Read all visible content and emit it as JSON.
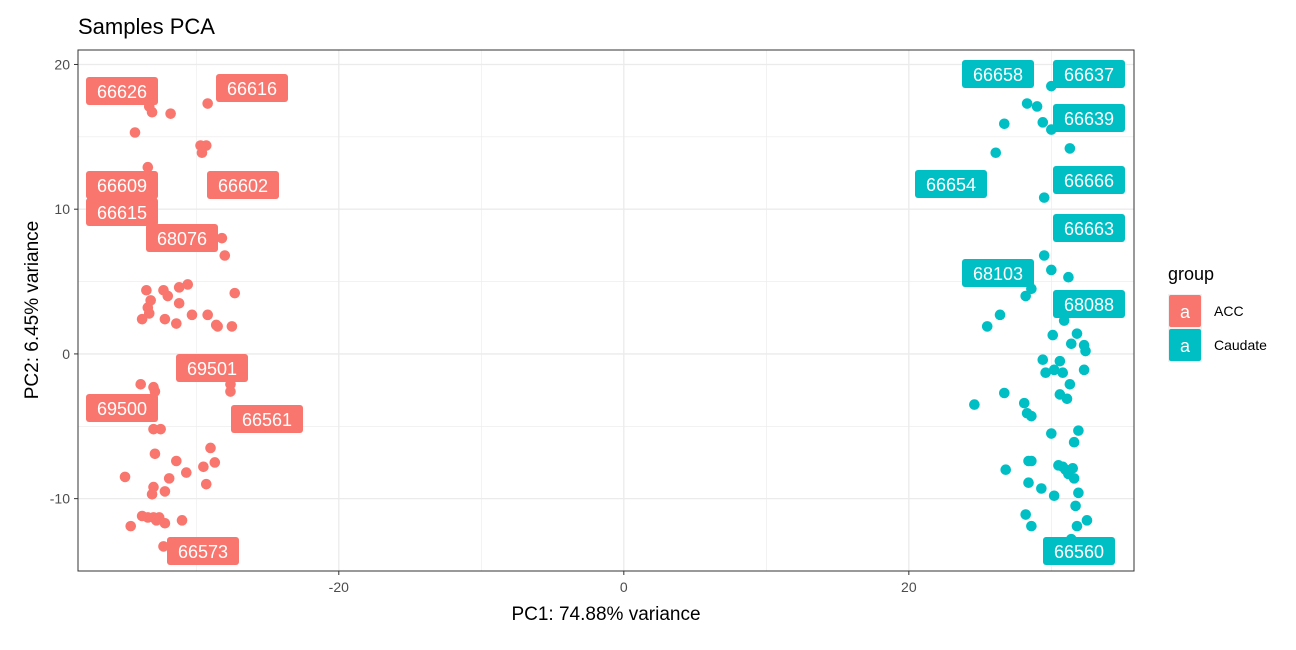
{
  "chart_data": {
    "type": "scatter",
    "title": "Samples PCA",
    "xlabel": "PC1: 74.88% variance",
    "ylabel": "PC2: 6.45% variance",
    "xlim": [
      -38.3,
      35.8
    ],
    "ylim": [
      -15,
      21
    ],
    "x_ticks": [
      -20,
      0,
      20
    ],
    "y_ticks": [
      -10,
      0,
      10,
      20
    ],
    "x_tick_labels": [
      "-20",
      "0",
      "20"
    ],
    "y_tick_labels": [
      "-10",
      "0",
      "10",
      "20"
    ],
    "grid": true,
    "legend": {
      "title": "group",
      "position": "right",
      "key_glyph": "a"
    },
    "colors": {
      "ACC": "#F8766D",
      "Caudate": "#00BFC4"
    },
    "series": [
      {
        "name": "ACC",
        "points": [
          [
            -33.3,
            17.1
          ],
          [
            -33.1,
            16.7
          ],
          [
            -31.8,
            16.6
          ],
          [
            -29.2,
            17.3
          ],
          [
            -34.3,
            15.3
          ],
          [
            -29.7,
            14.4
          ],
          [
            -29.3,
            14.4
          ],
          [
            -29.6,
            13.9
          ],
          [
            -33.4,
            12.9
          ],
          [
            -33.5,
            11.6
          ],
          [
            -33.6,
            10.4
          ],
          [
            -33.7,
            9.3
          ],
          [
            -28.2,
            8.0
          ],
          [
            -28.0,
            6.8
          ],
          [
            -33.5,
            4.4
          ],
          [
            -32.3,
            4.4
          ],
          [
            -31.2,
            4.6
          ],
          [
            -30.6,
            4.8
          ],
          [
            -32.0,
            4.0
          ],
          [
            -33.2,
            3.7
          ],
          [
            -31.2,
            3.5
          ],
          [
            -33.4,
            3.2
          ],
          [
            -33.3,
            2.8
          ],
          [
            -30.3,
            2.7
          ],
          [
            -29.2,
            2.7
          ],
          [
            -33.8,
            2.4
          ],
          [
            -32.2,
            2.4
          ],
          [
            -31.4,
            2.1
          ],
          [
            -27.3,
            4.2
          ],
          [
            -28.6,
            2.0
          ],
          [
            -28.5,
            1.9
          ],
          [
            -27.5,
            1.9
          ],
          [
            -33.9,
            -2.1
          ],
          [
            -33.0,
            -2.3
          ],
          [
            -32.9,
            -2.6
          ],
          [
            -27.6,
            -2.1
          ],
          [
            -27.6,
            -2.6
          ],
          [
            -33.2,
            -4.0
          ],
          [
            -33.0,
            -5.2
          ],
          [
            -32.5,
            -5.2
          ],
          [
            -32.9,
            -6.9
          ],
          [
            -29.0,
            -6.5
          ],
          [
            -35.0,
            -8.5
          ],
          [
            -31.4,
            -7.4
          ],
          [
            -29.5,
            -7.8
          ],
          [
            -28.7,
            -7.5
          ],
          [
            -29.3,
            -9.0
          ],
          [
            -30.7,
            -8.2
          ],
          [
            -31.9,
            -8.6
          ],
          [
            -33.0,
            -9.2
          ],
          [
            -33.1,
            -9.7
          ],
          [
            -32.2,
            -9.5
          ],
          [
            -33.8,
            -11.2
          ],
          [
            -33.4,
            -11.3
          ],
          [
            -33.0,
            -11.3
          ],
          [
            -32.6,
            -11.3
          ],
          [
            -32.2,
            -11.7
          ],
          [
            -31.0,
            -11.5
          ],
          [
            -34.6,
            -11.9
          ],
          [
            -32.8,
            -11.5
          ],
          [
            -32.3,
            -13.3
          ],
          [
            -31.3,
            -13.1
          ]
        ],
        "labels": [
          "66626",
          "66616",
          "66609",
          "66602",
          "66615",
          "68076",
          "69501",
          "69500",
          "66561",
          "66573"
        ]
      },
      {
        "name": "Caudate",
        "points": [
          [
            30.0,
            18.5
          ],
          [
            28.3,
            17.3
          ],
          [
            29.0,
            17.1
          ],
          [
            32.8,
            16.8
          ],
          [
            26.7,
            15.9
          ],
          [
            29.4,
            16.0
          ],
          [
            30.0,
            15.5
          ],
          [
            31.3,
            14.2
          ],
          [
            26.1,
            13.9
          ],
          [
            31.1,
            12.3
          ],
          [
            29.5,
            10.8
          ],
          [
            31.0,
            9.1
          ],
          [
            29.5,
            6.8
          ],
          [
            30.0,
            5.8
          ],
          [
            31.2,
            5.3
          ],
          [
            28.6,
            4.5
          ],
          [
            28.2,
            4.0
          ],
          [
            26.4,
            2.7
          ],
          [
            25.5,
            1.9
          ],
          [
            30.9,
            2.3
          ],
          [
            30.1,
            1.3
          ],
          [
            31.8,
            1.4
          ],
          [
            31.4,
            0.7
          ],
          [
            32.3,
            0.6
          ],
          [
            32.4,
            0.2
          ],
          [
            29.4,
            -0.4
          ],
          [
            30.2,
            -1.1
          ],
          [
            30.6,
            -0.5
          ],
          [
            30.8,
            -1.3
          ],
          [
            29.6,
            -1.3
          ],
          [
            31.3,
            -2.1
          ],
          [
            32.3,
            -1.1
          ],
          [
            26.7,
            -2.7
          ],
          [
            30.6,
            -2.8
          ],
          [
            31.1,
            -3.1
          ],
          [
            24.6,
            -3.5
          ],
          [
            28.1,
            -3.4
          ],
          [
            28.3,
            -4.1
          ],
          [
            28.6,
            -4.3
          ],
          [
            31.9,
            -5.3
          ],
          [
            30.0,
            -5.5
          ],
          [
            31.6,
            -6.1
          ],
          [
            26.8,
            -8.0
          ],
          [
            28.4,
            -7.4
          ],
          [
            28.6,
            -7.4
          ],
          [
            30.5,
            -7.7
          ],
          [
            30.8,
            -7.8
          ],
          [
            31.5,
            -7.9
          ],
          [
            31.0,
            -8.0
          ],
          [
            31.2,
            -8.3
          ],
          [
            31.6,
            -8.6
          ],
          [
            29.3,
            -9.3
          ],
          [
            28.4,
            -8.9
          ],
          [
            31.9,
            -9.6
          ],
          [
            30.2,
            -9.8
          ],
          [
            31.7,
            -10.5
          ],
          [
            28.2,
            -11.1
          ],
          [
            28.6,
            -11.9
          ],
          [
            32.5,
            -11.5
          ],
          [
            31.8,
            -11.9
          ],
          [
            31.4,
            -12.8
          ]
        ],
        "labels": [
          "66658",
          "66637",
          "66639",
          "66654",
          "66666",
          "66663",
          "68103",
          "68088",
          "66560"
        ]
      }
    ]
  }
}
